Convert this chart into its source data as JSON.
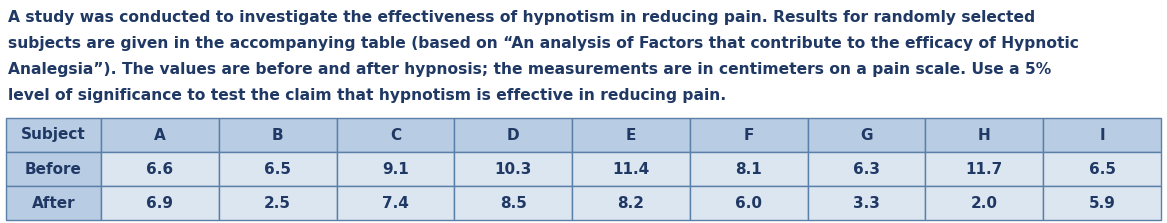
{
  "paragraph_lines": [
    "A study was conducted to investigate the effectiveness of hypnotism in reducing pain. Results for randomly selected",
    "subjects are given in the accompanying table (based on “An analysis of Factors that contribute to the efficacy of Hypnotic",
    "Analegsia”). The values are before and after hypnosis; the measurements are in centimeters on a pain scale. Use a 5%",
    "level of significance to test the claim that hypnotism is effective in reducing pain."
  ],
  "col_headers": [
    "Subject",
    "A",
    "B",
    "C",
    "D",
    "E",
    "F",
    "G",
    "H",
    "I"
  ],
  "row_labels": [
    "Before",
    "After"
  ],
  "before_values": [
    "6.6",
    "6.5",
    "9.1",
    "10.3",
    "11.4",
    "8.1",
    "6.3",
    "11.7",
    "6.5"
  ],
  "after_values": [
    "6.9",
    "2.5",
    "7.4",
    "8.5",
    "8.2",
    "6.0",
    "3.3",
    "2.0",
    "5.9"
  ],
  "header_bg": "#b8cce4",
  "cell_bg": "#dce6f1",
  "border_color": "#5a7fa8",
  "text_color": "#1f3864",
  "para_color": "#1f3864",
  "font_size_para": 11.2,
  "font_size_table": 11.0,
  "fig_width": 11.67,
  "fig_height": 2.23
}
